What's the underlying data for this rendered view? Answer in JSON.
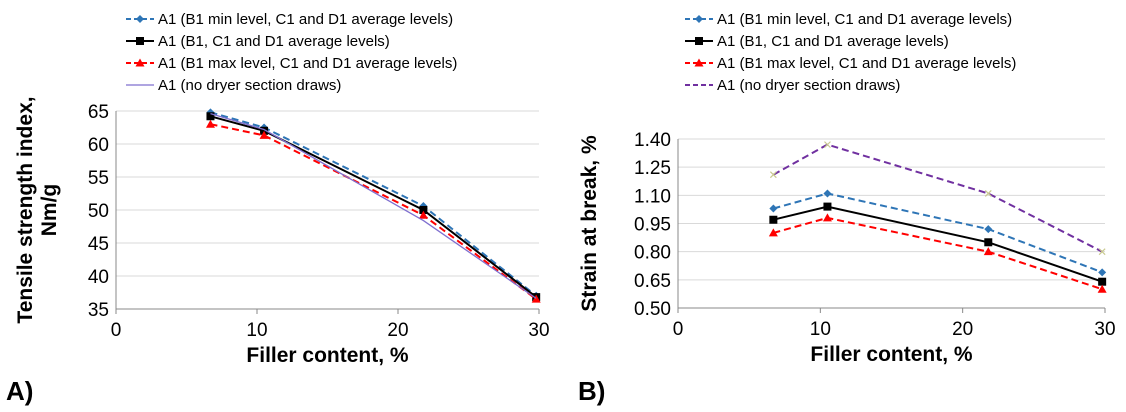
{
  "panels": {
    "a": {
      "label": "A)"
    },
    "b": {
      "label": "B)"
    }
  },
  "chart_data": [
    {
      "type": "line",
      "panel": "A)",
      "xlabel": "Filler content, %",
      "ylabel": "Tensile strength index, Nm/g",
      "ylabel_lines": [
        "Tensile strength index,",
        "Nm/g"
      ],
      "xlim": [
        0,
        30
      ],
      "ylim": [
        35,
        65
      ],
      "xticks": [
        0,
        10,
        20,
        30
      ],
      "yticks": [
        35,
        40,
        45,
        50,
        55,
        60,
        65
      ],
      "ytick_labels": [
        "35",
        "40",
        "45",
        "50",
        "55",
        "60",
        "65"
      ],
      "grid": "horizontal",
      "legend_position": "top",
      "x": [
        6.7,
        10.5,
        21.8,
        29.8
      ],
      "series": [
        {
          "name": "A1 (B1 min level, C1 and D1 average levels)",
          "values": [
            64.8,
            62.5,
            50.6,
            37.0
          ],
          "color": "#2e75b6",
          "dash": "dashed",
          "marker": "diamond"
        },
        {
          "name": "A1 (B1, C1 and D1 average levels)",
          "values": [
            64.2,
            62.0,
            50.0,
            36.8
          ],
          "color": "#000000",
          "dash": "solid",
          "marker": "square"
        },
        {
          "name": "A1 (B1 max level, C1 and D1 average levels)",
          "values": [
            63.0,
            61.3,
            49.2,
            36.5
          ],
          "color": "#ff0000",
          "dash": "dashed",
          "marker": "triangle"
        },
        {
          "name": "A1 (no dryer section draws)",
          "values": [
            64.6,
            62.2,
            48.4,
            36.6
          ],
          "color": "#7f6fcf",
          "dash": "solid",
          "marker": "none"
        }
      ]
    },
    {
      "type": "line",
      "panel": "B)",
      "xlabel": "Filler content, %",
      "ylabel": "Strain at break, %",
      "xlim": [
        0,
        30
      ],
      "ylim": [
        0.5,
        1.4
      ],
      "xticks": [
        0,
        10,
        20,
        30
      ],
      "yticks": [
        0.5,
        0.65,
        0.8,
        0.95,
        1.1,
        1.25,
        1.4
      ],
      "ytick_labels": [
        "0.50",
        "0.65",
        "0.80",
        "0.95",
        "1.10",
        "1.25",
        "1.40"
      ],
      "grid": "horizontal",
      "legend_position": "top",
      "x": [
        6.7,
        10.5,
        21.8,
        29.8
      ],
      "series": [
        {
          "name": "A1 (B1 min level, C1 and D1 average levels)",
          "values": [
            1.03,
            1.11,
            0.92,
            0.69
          ],
          "color": "#2e75b6",
          "dash": "dashed",
          "marker": "diamond"
        },
        {
          "name": "A1 (B1, C1 and D1 average levels)",
          "values": [
            0.97,
            1.04,
            0.85,
            0.64
          ],
          "color": "#000000",
          "dash": "solid",
          "marker": "square"
        },
        {
          "name": "A1 (B1 max level, C1 and D1 average levels)",
          "values": [
            0.9,
            0.98,
            0.8,
            0.6
          ],
          "color": "#ff0000",
          "dash": "dashed",
          "marker": "triangle"
        },
        {
          "name": "A1 (no dryer section draws)",
          "values": [
            1.21,
            1.37,
            1.11,
            0.8
          ],
          "color": "#7030a0",
          "dash": "dashed",
          "marker": "x"
        }
      ]
    }
  ]
}
